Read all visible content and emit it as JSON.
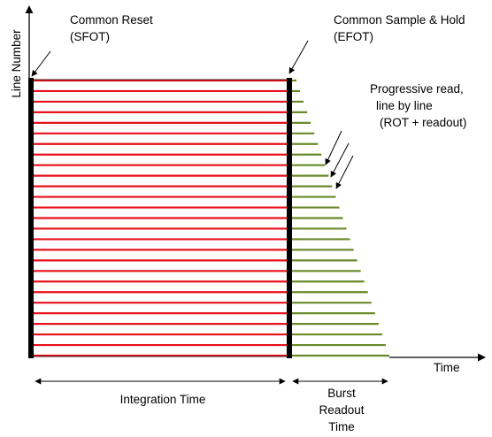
{
  "labels": {
    "common_reset_l1": "Common Reset",
    "common_reset_l2": "(SFOT)",
    "common_sh_l1": "Common Sample & Hold",
    "common_sh_l2": "(EFOT)",
    "prog_l1": "Progressive read,",
    "prog_l2": "line by line",
    "prog_l3": "(ROT + readout)",
    "y_axis": "Line Number",
    "x_axis": "Time",
    "integration": "Integration Time",
    "burst_l1": "Burst",
    "burst_l2": "Readout",
    "burst_l3": "Time"
  },
  "diagram": {
    "line_count": 27,
    "colors": {
      "integration_line": "#e8101a",
      "readout_line": "#6a8a2a",
      "marker_bar": "#000000",
      "axis": "#000000"
    }
  }
}
